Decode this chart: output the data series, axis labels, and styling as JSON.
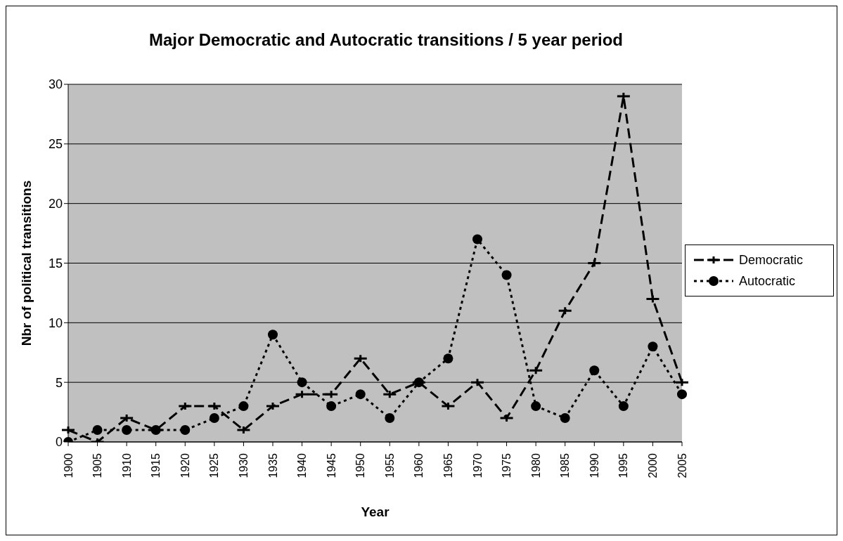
{
  "chart_data": {
    "type": "line",
    "title": "Major Democratic and Autocratic transitions / 5 year period",
    "xlabel": "Year",
    "ylabel": "Nbr of political transitions",
    "categories": [
      "1900",
      "1905",
      "1910",
      "1915",
      "1920",
      "1925",
      "1930",
      "1935",
      "1940",
      "1945",
      "1950",
      "1955",
      "1960",
      "1965",
      "1970",
      "1975",
      "1980",
      "1985",
      "1990",
      "1995",
      "2000",
      "2005"
    ],
    "series": [
      {
        "name": "Democratic",
        "color": "#000000",
        "line_style": "dashed",
        "marker": "cross",
        "values": [
          1,
          0,
          2,
          1,
          3,
          3,
          1,
          3,
          4,
          4,
          7,
          4,
          5,
          3,
          5,
          2,
          6,
          11,
          15,
          29,
          12,
          5
        ]
      },
      {
        "name": "Autocratic",
        "color": "#000000",
        "line_style": "dotted",
        "marker": "circle",
        "values": [
          0,
          1,
          1,
          1,
          1,
          2,
          3,
          9,
          5,
          3,
          4,
          2,
          5,
          7,
          17,
          14,
          3,
          2,
          6,
          3,
          8,
          4
        ]
      }
    ],
    "ylim": [
      0,
      30
    ],
    "yticks": [
      0,
      5,
      10,
      15,
      20,
      25,
      30
    ],
    "grid": "y",
    "legend": "right"
  }
}
